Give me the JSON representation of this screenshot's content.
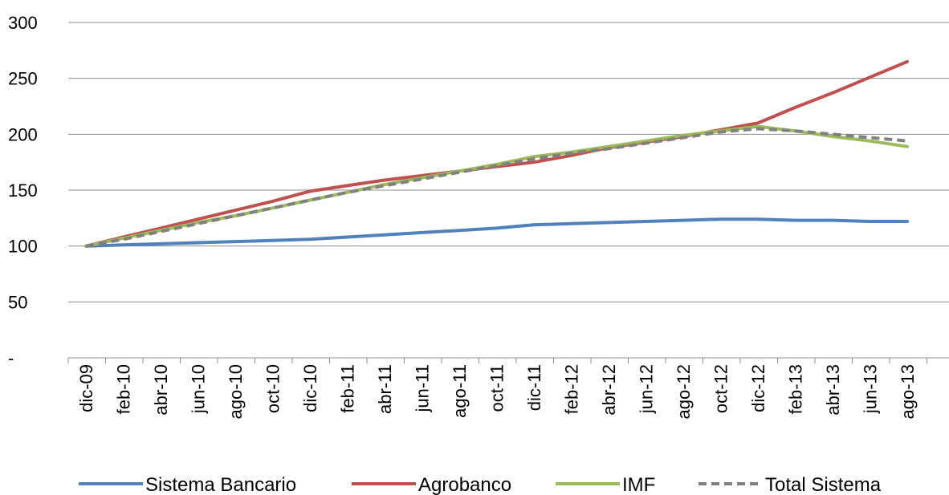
{
  "chart_data": {
    "type": "line",
    "title": "",
    "xlabel": "",
    "ylabel": "",
    "ylim": [
      0,
      300
    ],
    "y_ticks": [
      {
        "value": 0,
        "label": "-"
      },
      {
        "value": 50,
        "label": "50"
      },
      {
        "value": 100,
        "label": "100"
      },
      {
        "value": 150,
        "label": "150"
      },
      {
        "value": 200,
        "label": "200"
      },
      {
        "value": 250,
        "label": "250"
      },
      {
        "value": 300,
        "label": "300"
      }
    ],
    "grid": true,
    "legend_position": "bottom",
    "categories": [
      "dic-09",
      "feb-10",
      "abr-10",
      "jun-10",
      "ago-10",
      "oct-10",
      "dic-10",
      "feb-11",
      "abr-11",
      "jun-11",
      "ago-11",
      "oct-11",
      "dic-11",
      "feb-12",
      "abr-12",
      "jun-12",
      "ago-12",
      "oct-12",
      "dic-12",
      "feb-13",
      "abr-13",
      "jun-13",
      "ago-13"
    ],
    "series": [
      {
        "name": "Sistema Bancario",
        "color": "#4f81bd",
        "style": "solid",
        "values": [
          100,
          101,
          102,
          103,
          104,
          105,
          106,
          108,
          110,
          112,
          114,
          116,
          119,
          120,
          121,
          122,
          123,
          124,
          124,
          123,
          123,
          122,
          122
        ]
      },
      {
        "name": "Agrobanco",
        "color": "#c0504d",
        "style": "solid",
        "values": [
          100,
          108,
          116,
          124,
          132,
          140,
          149,
          154,
          159,
          163,
          167,
          171,
          175,
          181,
          188,
          193,
          198,
          204,
          210,
          224,
          237,
          251,
          265
        ]
      },
      {
        "name": "IMF",
        "color": "#9bbb59",
        "style": "solid",
        "values": [
          100,
          107,
          114,
          121,
          127,
          134,
          141,
          148,
          155,
          161,
          167,
          173,
          180,
          184,
          189,
          194,
          199,
          203,
          207,
          203,
          198,
          194,
          189
        ]
      },
      {
        "name": "Total Sistema",
        "color": "#808080",
        "style": "dashed",
        "values": [
          100,
          106,
          113,
          120,
          127,
          134,
          141,
          148,
          154,
          160,
          166,
          172,
          178,
          183,
          187,
          192,
          197,
          202,
          205,
          203,
          200,
          197,
          194
        ]
      }
    ]
  }
}
